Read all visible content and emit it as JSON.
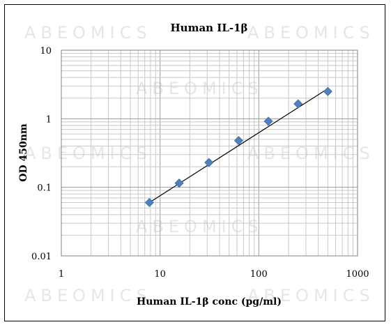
{
  "chart_data": {
    "type": "scatter",
    "title": "Human IL-1β",
    "xlabel": "Human IL-1β conc (pg/ml)",
    "ylabel": "OD 450nm",
    "x_scale": "log",
    "y_scale": "log",
    "xlim": [
      1,
      1000
    ],
    "ylim": [
      0.01,
      10
    ],
    "x_tick_labels": [
      "1",
      "10",
      "100",
      "1000"
    ],
    "y_tick_labels": [
      "0.01",
      "0.1",
      "1",
      "10"
    ],
    "grid": true,
    "legend": "none",
    "series": [
      {
        "x": [
          7.8,
          15.6,
          31.25,
          62.5,
          125,
          250,
          500
        ],
        "y": [
          0.06,
          0.115,
          0.23,
          0.48,
          0.92,
          1.65,
          2.5
        ],
        "marker": "diamond",
        "color": "#4f81bd"
      }
    ],
    "trendline": {
      "type": "power",
      "x": [
        7.8,
        500
      ],
      "y": [
        0.06,
        2.75
      ],
      "color": "#000000"
    }
  },
  "watermark_text": "ABEOMICS"
}
